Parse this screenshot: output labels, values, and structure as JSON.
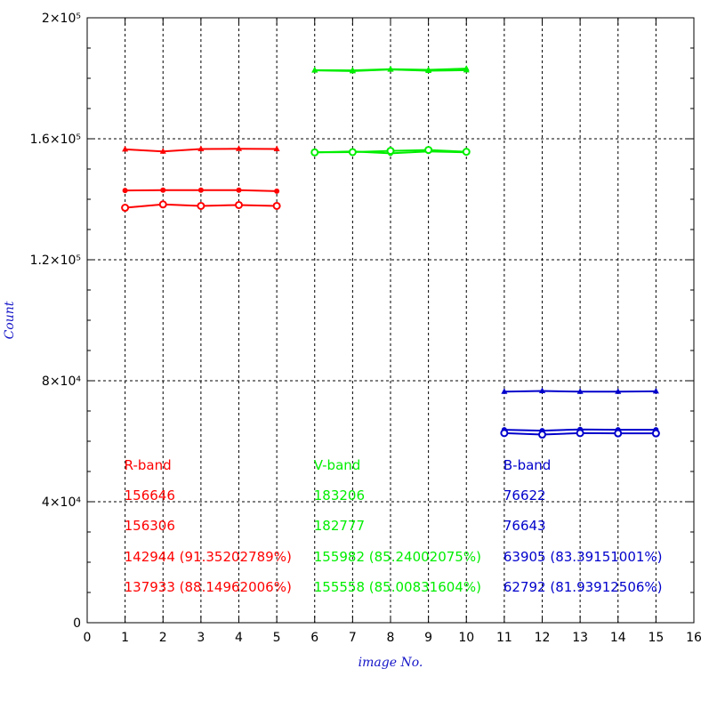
{
  "chart_data": {
    "type": "line",
    "xlabel": "image No.",
    "ylabel": "Count",
    "xlim": [
      0,
      16
    ],
    "ylim": [
      0,
      200000
    ],
    "x_ticks": [
      0,
      1,
      2,
      3,
      4,
      5,
      6,
      7,
      8,
      9,
      10,
      11,
      12,
      13,
      14,
      15,
      16
    ],
    "y_ticks": [
      0,
      40000,
      80000,
      120000,
      160000,
      200000
    ],
    "y_tick_labels": [
      "0",
      "4×10⁴",
      "8×10⁴",
      "1.2×10⁵",
      "1.6×10⁵",
      "2×10⁵"
    ],
    "grid": true,
    "series": [
      {
        "group": "R",
        "color": "#ff0000",
        "marker": "triangle",
        "x": [
          1,
          2,
          3,
          4,
          5
        ],
        "values": [
          156500,
          155800,
          156600,
          156700,
          156600
        ]
      },
      {
        "group": "R",
        "color": "#ff0000",
        "marker": "dot",
        "x": [
          1,
          2,
          3,
          4,
          5
        ],
        "values": [
          142900,
          143000,
          143000,
          143000,
          142700
        ]
      },
      {
        "group": "R",
        "color": "#ff0000",
        "marker": "circle",
        "x": [
          1,
          2,
          3,
          4,
          5
        ],
        "values": [
          137200,
          138300,
          137800,
          138100,
          137800
        ]
      },
      {
        "group": "V",
        "color": "#00ee00",
        "marker": "triangle",
        "x": [
          6,
          7,
          8,
          9,
          10
        ],
        "values": [
          182600,
          182400,
          182900,
          182500,
          182700
        ]
      },
      {
        "group": "V",
        "color": "#00ee00",
        "marker": "triangle",
        "x": [
          6,
          7,
          8,
          9,
          10
        ],
        "values": [
          182700,
          182600,
          183000,
          182800,
          183200
        ]
      },
      {
        "group": "V",
        "color": "#00ee00",
        "marker": "dot",
        "x": [
          6,
          7,
          8,
          9,
          10
        ],
        "values": [
          155500,
          155800,
          155200,
          155800,
          155500
        ]
      },
      {
        "group": "V",
        "color": "#00ee00",
        "marker": "circle",
        "x": [
          6,
          7,
          8,
          9,
          10
        ],
        "values": [
          155500,
          155600,
          156000,
          156300,
          155700
        ]
      },
      {
        "group": "B",
        "color": "#0000cc",
        "marker": "triangle",
        "x": [
          11,
          12,
          13,
          14,
          15
        ],
        "values": [
          76400,
          76600,
          76400,
          76400,
          76500
        ]
      },
      {
        "group": "B",
        "color": "#0000cc",
        "marker": "dot",
        "x": [
          11,
          12,
          13,
          14,
          15
        ],
        "values": [
          63800,
          63500,
          63900,
          63800,
          63800
        ]
      },
      {
        "group": "B",
        "color": "#0000cc",
        "marker": "circle",
        "x": [
          11,
          12,
          13,
          14,
          15
        ],
        "values": [
          62700,
          62200,
          62700,
          62600,
          62600
        ]
      }
    ],
    "annotations": {
      "R": {
        "color": "#ff0000",
        "lines": [
          "R-band",
          "156646",
          "156306",
          "142944 (91.35202789%)",
          "137933 (88.14962006%)"
        ]
      },
      "V": {
        "color": "#00ee00",
        "lines": [
          "V-band",
          "183206",
          "182777",
          "155982 (85.24002075%)",
          "155558 (85.00831604%)"
        ]
      },
      "B": {
        "color": "#0000cc",
        "lines": [
          "B-band",
          "76622",
          "76643",
          "63905 (83.39151001%)",
          "62792 (81.93912506%)"
        ]
      }
    }
  }
}
